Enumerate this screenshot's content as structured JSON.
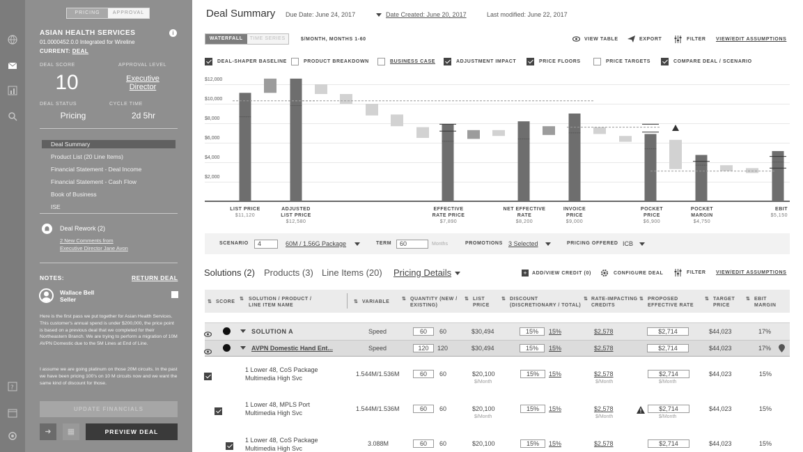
{
  "toggle": {
    "pricing": "PRICING",
    "approval": "APPROVAL"
  },
  "customer": {
    "name": "ASIAN HEALTH SERVICES",
    "id": "01.0000452.0.0 Integrated for Wireline",
    "current_label": "CURRENT:",
    "current_value": "DEAL"
  },
  "metrics": {
    "deal_score_label": "DEAL SCORE",
    "deal_score": "10",
    "approval_level_label": "APPROVAL LEVEL",
    "approval_level": "Executive Director",
    "deal_status_label": "DEAL STATUS",
    "deal_status": "Pricing",
    "cycle_time_label": "CYCLE TIME",
    "cycle_time": "2d 5hr"
  },
  "nav": [
    "Deal Summary",
    "Product List  (20 Line Items)",
    "Financial Statement - Deal Income",
    "Financial Statement - Cash Flow",
    "Book of Business",
    "ISE"
  ],
  "rework": {
    "title": "Deal Rework (2)",
    "link1": "2 New Comments from",
    "link2": "Executive Director Jane Avon"
  },
  "notes": {
    "title": "NOTES:",
    "return": "RETURN DEAL",
    "author": "Wallace Bell",
    "role": "Seller",
    "p1": "Here is the first pass we put together for Asian Health Services. This customer's annual spend is under $200,000, the price point is based on a previous deal that we completed for their Northeastern Branch. We are trying to perform a migration of 10M AVPN Domestic due to the 5M Lines at End of Line.",
    "p2": "I assume we are going platinum on those 20M circuits. In the past we have been pricing 100's on 10 M circuits now and we want the same kind of discount for those."
  },
  "buttons": {
    "update": "UPDATE FINANCIALS",
    "preview": "PREVIEW DEAL"
  },
  "header": {
    "title": "Deal Summary",
    "due": "Due Date: June 24, 2017",
    "created": "Date Created: June 20, 2017",
    "modified": "Last modified: June 22, 2017"
  },
  "view": {
    "waterfall": "WATERFALL",
    "timeseries": "TIME SERIES",
    "unit": "$/MONTH, MONTHS 1-60",
    "view_table": "VIEW TABLE",
    "export": "EXPORT",
    "filter": "FILTER",
    "assumptions": "VIEW/EDIT ASSUMPTIONS"
  },
  "checkboxes": [
    {
      "label": "DEAL-SHAPER BASELINE",
      "checked": true
    },
    {
      "label": "PRODUCT BREAKDOWN",
      "checked": false
    },
    {
      "label": "BUSINESS CASE",
      "checked": false
    },
    {
      "label": "ADJUSTMENT IMPACT",
      "checked": true
    },
    {
      "label": "PRICE FLOORS",
      "checked": true
    },
    {
      "label": "PRICE TARGETS",
      "checked": false
    },
    {
      "label": "COMPARE DEAL / SCENARIO",
      "checked": false
    }
  ],
  "chart_data": {
    "type": "bar",
    "subtype": "waterfall",
    "unit": "$/MONTH, MONTHS 1-60",
    "ylim": [
      0,
      12000
    ],
    "yticks": [
      "$2,000",
      "$4,000",
      "$6,000",
      "$8,000",
      "$10,000",
      "$12,000"
    ],
    "grid": true,
    "categories": [
      "LIST PRICE",
      "ADJUSTED LIST PRICE",
      "EFFECTIVE RATE PRICE",
      "NET EFFECTIVE RATE",
      "INVOICE PRICE",
      "POCKET PRICE",
      "POCKET MARGIN",
      "EBIT"
    ],
    "values": [
      11120,
      12580,
      7890,
      8200,
      9000,
      6900,
      4750,
      5150
    ],
    "value_labels": [
      "$11,120",
      "$12,580",
      "$7,890",
      "$8,200",
      "$9,000",
      "$6,900",
      "$4,750",
      "$5,150"
    ]
  },
  "scenario": {
    "scenario_label": "SCENARIO",
    "scenario": "4",
    "package": "60M  /  1.56G Package",
    "term_label": "TERM",
    "term": "60",
    "term_unit": "Months",
    "promo_label": "PROMOTIONS",
    "promo": "3  Selected",
    "offered_label": "PRICING OFFERED",
    "offered": "ICB"
  },
  "tabs": {
    "solutions": "Solutions (2)",
    "products": "Products (3)",
    "line_items": "Line Items (20)",
    "pricing": "Pricing Details",
    "add_credit": "ADD/VIEW CREDIT (0)",
    "configure": "CONFIGURE DEAL",
    "filter": "FILTER",
    "assumptions": "VIEW/EDIT ASSUMPTIONS"
  },
  "table": {
    "headers": [
      "SCORE",
      "SOLUTION / PRODUCT / LINE ITEM NAME",
      "VARIABLE",
      "QUANTITY (NEW / EXISTING)",
      "LIST PRICE",
      "DISCOUNT (DISCRETIONARY / TOTAL)",
      "RATE-IMPACTING CREDITS",
      "PROPOSED EFFECTIVE RATE",
      "TARGET PRICE",
      "EBIT MARGIN"
    ],
    "rows": [
      {
        "name": "SOLUTION A",
        "variable": "Speed",
        "qnew": "60",
        "qex": "60",
        "list": "$30,494",
        "disc": "15%",
        "total": "15%",
        "credits": "$2,578",
        "rate": "$2,714",
        "target": "$44,023",
        "ebit": "17%"
      },
      {
        "name": "AVPN Domestic Hand Ent...",
        "variable": "Speed",
        "qnew": "120",
        "qex": "120",
        "list": "$30,494",
        "disc": "15%",
        "total": "15%",
        "credits": "$2,578",
        "rate": "$2,714",
        "target": "$44,023",
        "ebit": "17%"
      },
      {
        "name1": "1 Lower 48, CoS Package",
        "name2": "Multimedia High Svc",
        "variable": "1.544M/1.536M",
        "qnew": "60",
        "qex": "60",
        "list": "$20,100",
        "disc": "15%",
        "total": "15%",
        "credits": "$2,578",
        "rate": "$2,714",
        "target": "$44,023",
        "ebit": "15%",
        "per": "$/Month"
      },
      {
        "name1": "1 Lower 48, MPLS Port",
        "name2": "Multimedia High Svc",
        "variable": "1.544M/1.536M",
        "qnew": "60",
        "qex": "60",
        "list": "$20,100",
        "disc": "15%",
        "total": "15%",
        "credits": "$2,578",
        "rate": "$2,714",
        "target": "$44,023",
        "ebit": "15%",
        "per": "$/Month"
      },
      {
        "name1": "1 Lower 48, CoS Package",
        "name2": "Multimedia High Svc",
        "variable": "3.088M",
        "qnew": "60",
        "qex": "60",
        "list": "$20,100",
        "disc": "15%",
        "total": "15%",
        "credits": "$2,578",
        "rate": "$2,714",
        "target": "$44,023",
        "ebit": "15%"
      }
    ]
  }
}
